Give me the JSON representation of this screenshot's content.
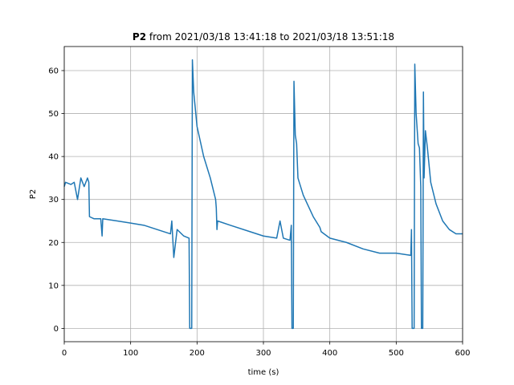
{
  "chart_data": {
    "type": "line",
    "title_name": "P2",
    "title_rest": "from 2021/03/18 13:41:18 to 2021/03/18 13:51:18",
    "xlabel": "time (s)",
    "ylabel": "P2",
    "color": "#1f77b4",
    "grid": true,
    "xlim": [
      0,
      600
    ],
    "ylim": [
      -3.1,
      65.6
    ],
    "xticks": [
      0,
      100,
      200,
      300,
      400,
      500,
      600
    ],
    "yticks": [
      0,
      10,
      20,
      30,
      40,
      50,
      60
    ],
    "x": [
      0,
      2,
      10,
      15,
      20,
      25,
      30,
      35,
      37,
      38,
      45,
      55,
      57,
      58,
      80,
      100,
      120,
      140,
      160,
      162,
      165,
      170,
      180,
      188,
      189,
      192,
      193,
      195,
      200,
      210,
      220,
      228,
      229,
      230,
      231,
      250,
      280,
      300,
      320,
      325,
      330,
      340,
      342,
      343,
      345,
      346,
      348,
      350,
      352,
      360,
      375,
      385,
      387,
      400,
      425,
      450,
      475,
      500,
      522,
      523,
      524,
      527,
      528,
      530,
      533,
      535,
      537,
      538,
      540,
      541,
      542,
      544,
      547,
      552,
      560,
      570,
      580,
      590,
      600
    ],
    "values": [
      33,
      34,
      33.5,
      34,
      30,
      35,
      33,
      35,
      34,
      26,
      25.5,
      25.5,
      21.5,
      25.5,
      25,
      24.5,
      24,
      23,
      22,
      25,
      16.5,
      23,
      21.5,
      21,
      0,
      0,
      62.5,
      55,
      47,
      40,
      35,
      30,
      28,
      23,
      25,
      24,
      22.5,
      21.5,
      21,
      25,
      21,
      20.5,
      24,
      0,
      0,
      57.5,
      45,
      43,
      35,
      31,
      26,
      23.5,
      22.5,
      21,
      20,
      18.5,
      17.5,
      17.5,
      17,
      23,
      0,
      0,
      61.5,
      50,
      43,
      42,
      33,
      0,
      0,
      55,
      35,
      46,
      42,
      34,
      29,
      25,
      23,
      22,
      22
    ]
  }
}
